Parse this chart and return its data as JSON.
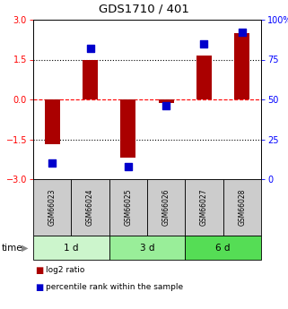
{
  "title": "GDS1710 / 401",
  "samples": [
    "GSM66023",
    "GSM66024",
    "GSM66025",
    "GSM66026",
    "GSM66027",
    "GSM66028"
  ],
  "log2_ratio": [
    -1.7,
    1.5,
    -2.2,
    -0.15,
    1.65,
    2.5
  ],
  "percentile_rank": [
    10,
    82,
    8,
    46,
    85,
    92
  ],
  "groups": [
    {
      "label": "1 d",
      "cols": [
        0,
        1
      ],
      "color": "#ccf5cc"
    },
    {
      "label": "3 d",
      "cols": [
        2,
        3
      ],
      "color": "#99ee99"
    },
    {
      "label": "6 d",
      "cols": [
        4,
        5
      ],
      "color": "#55dd55"
    }
  ],
  "ylim_left": [
    -3,
    3
  ],
  "ylim_right": [
    0,
    100
  ],
  "left_ticks": [
    -3,
    -1.5,
    0,
    1.5,
    3
  ],
  "right_ticks": [
    0,
    25,
    50,
    75,
    100
  ],
  "bar_color": "#aa0000",
  "dot_color": "#0000cc",
  "hlines_dotted": [
    -1.5,
    1.5
  ],
  "hline_dashed": 0,
  "bar_width": 0.4,
  "dot_size": 30,
  "sample_box_color": "#cccccc",
  "legend_red_label": "log2 ratio",
  "legend_blue_label": "percentile rank within the sample"
}
